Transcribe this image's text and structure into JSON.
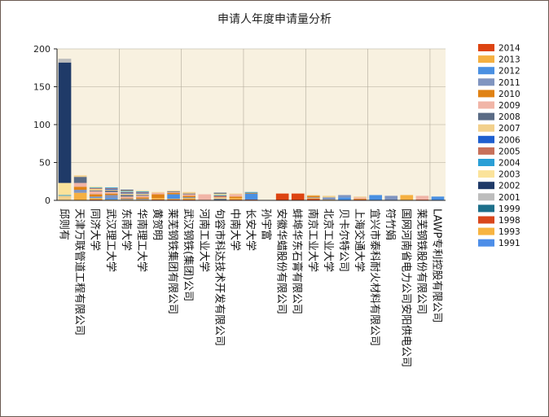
{
  "chart_data": {
    "type": "bar",
    "stacked": true,
    "title": "申请人年度申请量分析",
    "xlabel": "",
    "ylabel": "",
    "ylim": [
      0,
      200
    ],
    "yticks": [
      0,
      50,
      100,
      150,
      200
    ],
    "grid": true,
    "legend_position": "right",
    "categories": [
      "邱则有",
      "天津万联管道工程有限公司",
      "同济大学",
      "武汉理工大学",
      "东南大学",
      "华南理工大学",
      "黄贺明",
      "莱芜钢铁集团有限公司",
      "武汉钢铁(集团)公司",
      "河南工业大学",
      "句容市科达技术开发有限公司",
      "中南大学",
      "长安大学",
      "孙宇富",
      "安徽华蜡股份有限公司",
      "蚌埠华东石膏有限公司",
      "南京工业大学",
      "北京工业大学",
      "贝卡尔特公司",
      "上海交通大学",
      "宜兴市泰科耐火材料有限公司",
      "符竹娟",
      "国网河南省电力公司安阳供电公司",
      "莱芜钢铁股份有限公司",
      "LAWP专利控股有限公司"
    ],
    "series": [
      {
        "name": "2014",
        "color": "#dd4411",
        "values": [
          0,
          0,
          1,
          0,
          0,
          0,
          1,
          1,
          1,
          0,
          0,
          1,
          1,
          0,
          9,
          9,
          2,
          0,
          0,
          1,
          0,
          0,
          0,
          1,
          0
        ]
      },
      {
        "name": "2013",
        "color": "#f5b041",
        "values": [
          0,
          10,
          2,
          1,
          1,
          1,
          2,
          1,
          2,
          0,
          0,
          2,
          0,
          0,
          0,
          0,
          1,
          1,
          0,
          0,
          0,
          0,
          7,
          0,
          0
        ]
      },
      {
        "name": "2012",
        "color": "#4a90e2",
        "values": [
          0,
          0,
          1,
          2,
          0,
          0,
          0,
          6,
          1,
          0,
          0,
          0,
          8,
          0,
          0,
          0,
          0,
          0,
          4,
          0,
          7,
          0,
          0,
          0,
          5
        ]
      },
      {
        "name": "2011",
        "color": "#8095c0",
        "values": [
          0,
          4,
          1,
          4,
          1,
          1,
          0,
          0,
          0,
          0,
          0,
          0,
          0,
          0,
          0,
          0,
          1,
          3,
          3,
          0,
          0,
          6,
          0,
          0,
          0
        ]
      },
      {
        "name": "2010",
        "color": "#e08214",
        "values": [
          0,
          4,
          3,
          2,
          1,
          2,
          5,
          2,
          2,
          0,
          0,
          2,
          1,
          0,
          0,
          0,
          2,
          0,
          0,
          1,
          0,
          0,
          0,
          0,
          0
        ]
      },
      {
        "name": "2009",
        "color": "#f1b5a7",
        "values": [
          0,
          5,
          4,
          2,
          2,
          2,
          2,
          1,
          2,
          8,
          0,
          3,
          0,
          0,
          0,
          0,
          0,
          0,
          0,
          2,
          0,
          0,
          0,
          5,
          0
        ]
      },
      {
        "name": "2008",
        "color": "#5a6b85",
        "values": [
          0,
          8,
          1,
          2,
          2,
          1,
          0,
          1,
          1,
          0,
          2,
          0,
          0,
          0,
          0,
          0,
          0,
          0,
          0,
          0,
          0,
          0,
          0,
          0,
          0
        ]
      },
      {
        "name": "2007",
        "color": "#f2d08c",
        "values": [
          6,
          2,
          2,
          1,
          2,
          2,
          1,
          1,
          2,
          0,
          2,
          1,
          0,
          0,
          0,
          0,
          1,
          2,
          0,
          1,
          0,
          0,
          0,
          0,
          0
        ]
      },
      {
        "name": "2006",
        "color": "#1f5fcf",
        "values": [
          0,
          0,
          0,
          1,
          1,
          1,
          0,
          0,
          0,
          0,
          0,
          0,
          0,
          0,
          0,
          0,
          0,
          0,
          0,
          0,
          0,
          0,
          0,
          0,
          0
        ]
      },
      {
        "name": "2005",
        "color": "#c8705a",
        "values": [
          0,
          0,
          1,
          1,
          1,
          1,
          0,
          0,
          0,
          0,
          2,
          0,
          0,
          0,
          0,
          0,
          0,
          0,
          0,
          0,
          0,
          0,
          0,
          0,
          0
        ]
      },
      {
        "name": "2004",
        "color": "#2a9fd6",
        "values": [
          1,
          0,
          1,
          1,
          1,
          1,
          0,
          0,
          0,
          0,
          1,
          0,
          1,
          0,
          0,
          0,
          0,
          0,
          0,
          0,
          0,
          0,
          0,
          0,
          0
        ]
      },
      {
        "name": "2003",
        "color": "#fbe39b",
        "values": [
          16,
          0,
          1,
          0,
          1,
          1,
          0,
          0,
          0,
          0,
          2,
          0,
          0,
          0,
          0,
          0,
          0,
          0,
          0,
          0,
          0,
          0,
          0,
          0,
          0
        ]
      },
      {
        "name": "2002",
        "color": "#1f3a68",
        "values": [
          159,
          0,
          0,
          0,
          1,
          0,
          0,
          0,
          0,
          0,
          1,
          0,
          0,
          0,
          0,
          0,
          0,
          0,
          0,
          0,
          0,
          0,
          0,
          0,
          0
        ]
      },
      {
        "name": "2001",
        "color": "#bdbdbd",
        "values": [
          5,
          0,
          0,
          0,
          0,
          0,
          0,
          0,
          0,
          0,
          0,
          0,
          0,
          0,
          0,
          0,
          0,
          0,
          0,
          0,
          0,
          0,
          0,
          0,
          0
        ]
      },
      {
        "name": "1999",
        "color": "#1d6f8a",
        "values": [
          0,
          0,
          0,
          0,
          0,
          0,
          0,
          0,
          0,
          0,
          0,
          0,
          0,
          0,
          0,
          0,
          0,
          0,
          0,
          0,
          0,
          0,
          0,
          0,
          0
        ]
      },
      {
        "name": "1998",
        "color": "#d9471c",
        "values": [
          0,
          0,
          0,
          0,
          0,
          0,
          0,
          0,
          0,
          0,
          0,
          0,
          0,
          0,
          0,
          0,
          0,
          0,
          0,
          0,
          0,
          0,
          0,
          0,
          0
        ]
      },
      {
        "name": "1993",
        "color": "#f7b441",
        "values": [
          0,
          0,
          0,
          0,
          0,
          0,
          0,
          0,
          0,
          0,
          0,
          0,
          0,
          0,
          0,
          0,
          0,
          0,
          0,
          0,
          0,
          0,
          0,
          0,
          0
        ]
      },
      {
        "name": "1991",
        "color": "#4d8ee8",
        "values": [
          0,
          0,
          0,
          0,
          0,
          0,
          0,
          0,
          0,
          0,
          0,
          0,
          0,
          0,
          0,
          0,
          0,
          0,
          0,
          0,
          0,
          0,
          0,
          0,
          0
        ]
      }
    ]
  },
  "colors": {
    "plot_background": "#f8f1e0",
    "grid": "#b0a99a",
    "axis": "#222222"
  }
}
